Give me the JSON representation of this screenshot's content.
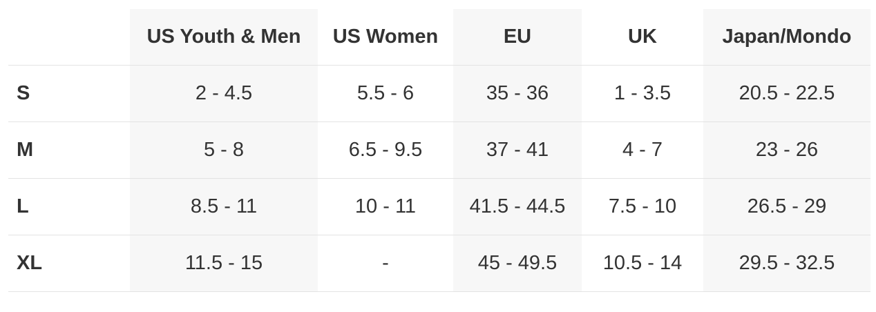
{
  "table": {
    "columns": [
      "US Youth & Men",
      "US Women",
      "EU",
      "UK",
      "Japan/Mondo"
    ],
    "rows": [
      {
        "size": "S",
        "cells": [
          "2 - 4.5",
          "5.5 - 6",
          "35 - 36",
          "1 - 3.5",
          "20.5 - 22.5"
        ]
      },
      {
        "size": "M",
        "cells": [
          "5 - 8",
          "6.5 - 9.5",
          "37 - 41",
          "4 - 7",
          "23 - 26"
        ]
      },
      {
        "size": "L",
        "cells": [
          "8.5 - 11",
          "10 - 11",
          "41.5 - 44.5",
          "7.5 - 10",
          "26.5 - 29"
        ]
      },
      {
        "size": "XL",
        "cells": [
          "11.5 - 15",
          "-",
          "45 - 49.5",
          "10.5 - 14",
          "29.5 - 32.5"
        ]
      }
    ]
  }
}
